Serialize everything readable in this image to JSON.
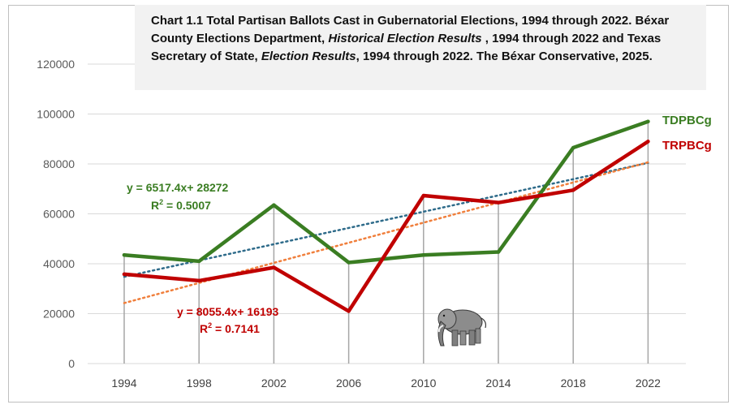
{
  "chart_data": {
    "type": "line",
    "title_parts": {
      "p1": "Chart 1.1 Total Partisan Ballots Cast in Gubernatorial Elections, 1994 through 2022. Béxar County Elections Department, ",
      "p2": "Historical Election Results",
      "p3": " , 1994 through 2022 and Texas Secretary of State, ",
      "p4": "Election Results",
      "p5": ", 1994 through 2022. The Béxar Conservative, 2025."
    },
    "categories": [
      "1994",
      "1998",
      "2002",
      "2006",
      "2010",
      "2014",
      "2018",
      "2022"
    ],
    "y_ticks": [
      "0",
      "20000",
      "40000",
      "60000",
      "80000",
      "100000",
      "120000"
    ],
    "ylim": [
      0,
      120000
    ],
    "grid": true,
    "series": [
      {
        "name": "TDPBCg",
        "color": "#3a7d22",
        "values": [
          43500,
          41000,
          63500,
          40500,
          43500,
          44700,
          86500,
          97000
        ],
        "trend": {
          "slope": 6517.4,
          "intercept": 28272,
          "equation": "y = 6517.4x+ 28272",
          "r2_label": "R",
          "r2_exp": "2",
          "r2_value": " = 0.5007",
          "color": "#2e6b8a"
        }
      },
      {
        "name": "TRPBCg",
        "color": "#c00000",
        "values": [
          35800,
          33200,
          38500,
          21000,
          67300,
          64500,
          69500,
          89000
        ],
        "trend": {
          "slope": 8055.4,
          "intercept": 16193,
          "equation": "y = 8055.4x+ 16193",
          "r2_label": "R",
          "r2_exp": "2",
          "r2_value": " = 0.7141",
          "color": "#f07f3c"
        }
      }
    ],
    "equation_colors": [
      "#3a7d22",
      "#c00000"
    ],
    "mascot": "elephant-icon"
  }
}
